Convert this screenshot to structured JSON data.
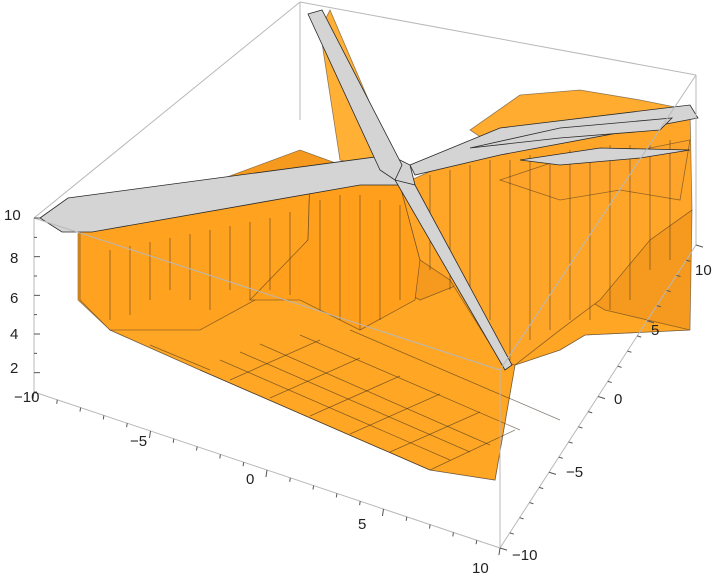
{
  "chart_data": {
    "type": "surface3d",
    "title": "",
    "xlabel": "",
    "ylabel": "",
    "zlabel": "",
    "xlim": [
      -10,
      10
    ],
    "ylim": [
      -10,
      10
    ],
    "zlim": [
      1,
      10
    ],
    "x_ticks": [
      "−10",
      "−5",
      "0",
      "5",
      "10"
    ],
    "y_ticks": [
      "−10",
      "−5",
      "0",
      "5",
      "10"
    ],
    "z_ticks": [
      "2",
      "4",
      "6",
      "8",
      "10"
    ],
    "surface_color": "#ffa21f",
    "ridge_color": "#d4d4d4",
    "box_color": "#b8b8b8",
    "description_levels": [
      1,
      2,
      3,
      4,
      5,
      6,
      7,
      8,
      9,
      10
    ]
  }
}
